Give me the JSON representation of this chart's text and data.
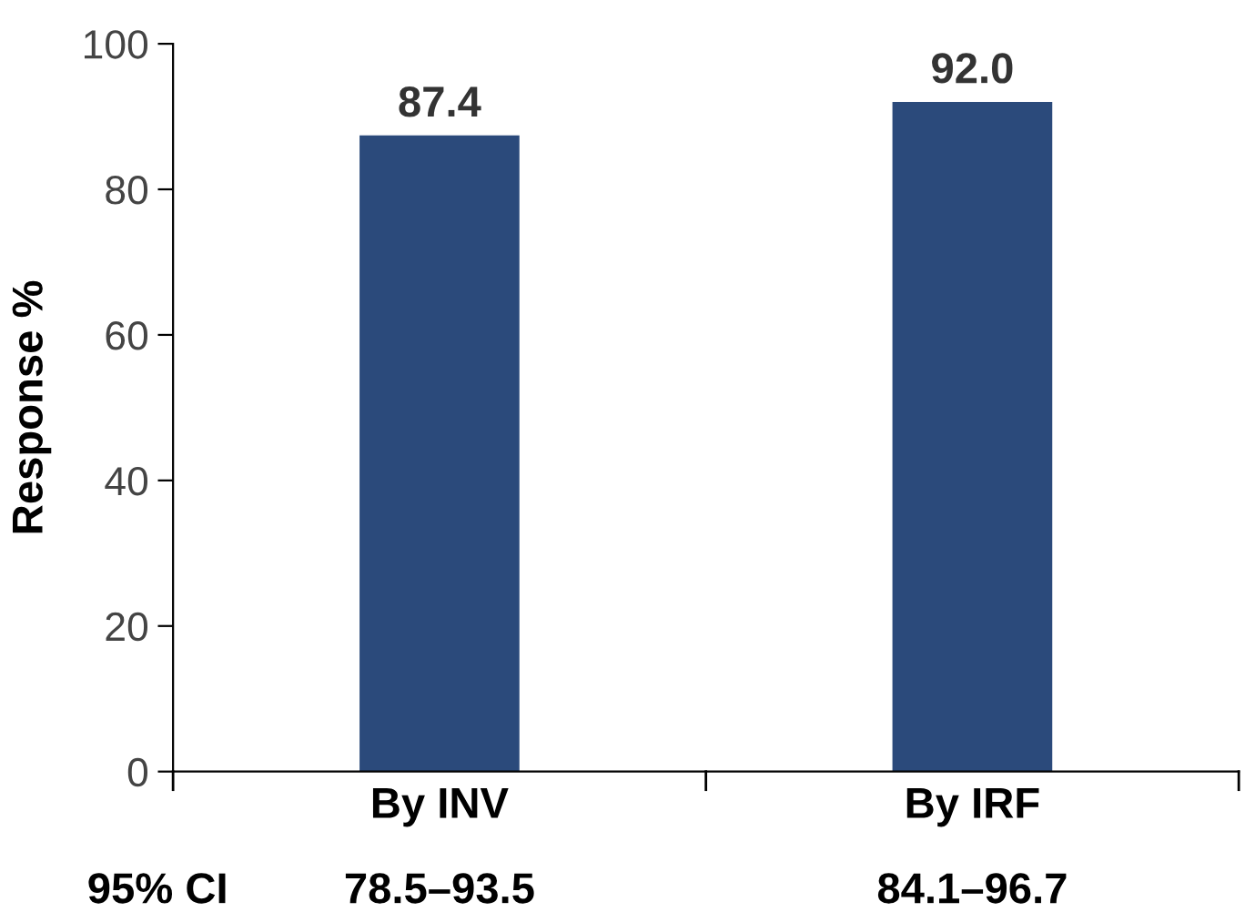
{
  "chart_data": {
    "type": "bar",
    "ylabel": "Response %",
    "categories": [
      "By INV",
      "By IRF"
    ],
    "values": [
      87.4,
      92.0
    ],
    "value_labels": [
      "87.4",
      "92.0"
    ],
    "color": "#2b4a7b",
    "ylim": [
      0,
      100
    ],
    "yticks": [
      0,
      20,
      40,
      60,
      80,
      100
    ],
    "grid": false,
    "annotations": [
      "95% CI",
      "78.5–93.5",
      "84.1–96.7"
    ]
  }
}
